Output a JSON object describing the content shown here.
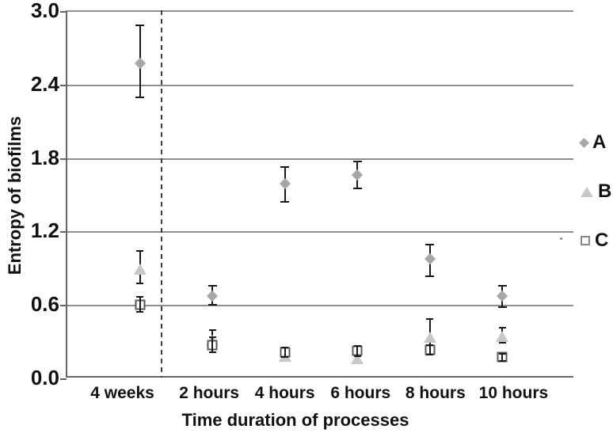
{
  "chart_data": {
    "type": "scatter",
    "title": "",
    "xlabel": "Time duration of processes",
    "ylabel": "Entropy of biofilms",
    "ylim": [
      0.0,
      3.0
    ],
    "y_ticks": [
      0.0,
      0.6,
      1.2,
      1.8,
      2.4,
      3.0
    ],
    "grid": true,
    "legend_position": "right",
    "categories": [
      "4 weeks",
      "2 hours",
      "4 hours",
      "6 hours",
      "8 hours",
      "10 hours"
    ],
    "separator_after_index": 0,
    "series": [
      {
        "name": "A",
        "marker": "diamond",
        "color": "#a7a7a7",
        "values": [
          2.58,
          0.68,
          1.6,
          1.67,
          0.98,
          0.68
        ],
        "err_lo": [
          2.3,
          0.61,
          1.45,
          1.56,
          0.84,
          0.59
        ],
        "err_hi": [
          2.89,
          0.76,
          1.73,
          1.78,
          1.1,
          0.76
        ]
      },
      {
        "name": "B",
        "marker": "triangle",
        "color": "#c8c8c8",
        "values": [
          0.9,
          0.32,
          0.19,
          0.17,
          0.34,
          0.35
        ],
        "err_lo": [
          0.78,
          0.25,
          0.15,
          0.13,
          0.27,
          0.3
        ],
        "err_hi": [
          1.05,
          0.4,
          0.23,
          0.21,
          0.49,
          0.42
        ]
      },
      {
        "name": "C",
        "marker": "open-square",
        "color": "#5a5a5a",
        "values": [
          0.61,
          0.28,
          0.22,
          0.23,
          0.24,
          0.18
        ],
        "err_lo": [
          0.55,
          0.22,
          0.18,
          0.19,
          0.2,
          0.15
        ],
        "err_hi": [
          0.67,
          0.34,
          0.26,
          0.27,
          0.28,
          0.21
        ]
      }
    ]
  }
}
